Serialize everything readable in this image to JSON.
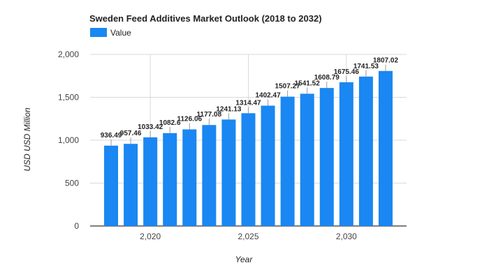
{
  "chart_data": {
    "type": "bar",
    "title": "Sweden Feed Additives Market Outlook (2018 to 2032)",
    "xlabel": "Year",
    "ylabel": "USD USD Million",
    "legend": {
      "entries": [
        "Value"
      ],
      "placement": "top-left"
    },
    "series": [
      {
        "name": "Value",
        "color": "#1a87f2",
        "values": [
          936.49,
          957.46,
          1033.42,
          1082.6,
          1126.06,
          1177.08,
          1241.13,
          1314.47,
          1402.47,
          1507.27,
          1541.52,
          1608.79,
          1675.46,
          1741.53,
          1807.02
        ]
      }
    ],
    "x": [
      2018,
      2019,
      2020,
      2021,
      2022,
      2023,
      2024,
      2025,
      2026,
      2027,
      2028,
      2029,
      2030,
      2031,
      2032
    ],
    "x_tick_values": [
      2020,
      2025,
      2030
    ],
    "x_tick_labels": [
      "2,020",
      "2,025",
      "2,030"
    ],
    "xlim": [
      2016.93,
      2033.07
    ],
    "ylim": [
      0,
      2000
    ],
    "y_ticks": [
      0,
      500,
      1000,
      1500,
      2000
    ],
    "y_tick_labels": [
      "0",
      "500",
      "1,000",
      "1,500",
      "2,000"
    ],
    "data_labels": [
      "936.49",
      "957.46",
      "1033.42",
      "1082.6",
      "1126.06",
      "1177.08",
      "1241.13",
      "1314.47",
      "1402.47",
      "1507.27",
      "1541.52",
      "1608.79",
      "1675.46",
      "1741.53",
      "1807.02"
    ],
    "grid": true
  }
}
